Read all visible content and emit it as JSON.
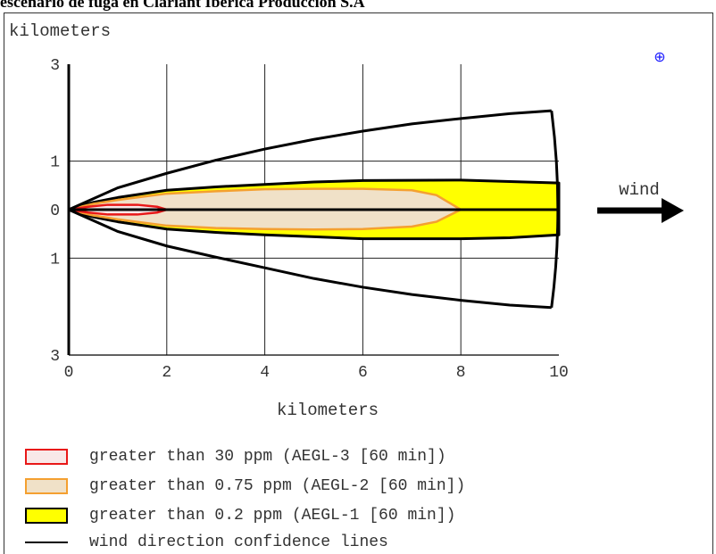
{
  "title": "escenario de fuga en Clariant Ibérica Producción S.A",
  "compass_symbol": "⊕",
  "wind_label": "wind",
  "chart_data": {
    "type": "area",
    "ylabel": "kilometers",
    "xlabel": "kilometers",
    "xlim": [
      0,
      10
    ],
    "ylim": [
      -3,
      3
    ],
    "x_ticks": [
      "0",
      "2",
      "4",
      "6",
      "8",
      "10"
    ],
    "y_ticks": [
      {
        "value": 3,
        "label": "3"
      },
      {
        "value": 1,
        "label": "1"
      },
      {
        "value": 0,
        "label": "0"
      },
      {
        "value": -1,
        "label": "1"
      },
      {
        "value": -3,
        "label": "3"
      }
    ],
    "grid": true,
    "series": [
      {
        "name": "greater than 0.2 ppm (AEGL-1 [60 min])",
        "fill": "#ffff00",
        "stroke": "#000000",
        "upper": [
          [
            0,
            0
          ],
          [
            0.5,
            0.15
          ],
          [
            1,
            0.25
          ],
          [
            2,
            0.4
          ],
          [
            3,
            0.47
          ],
          [
            4,
            0.52
          ],
          [
            5,
            0.57
          ],
          [
            6,
            0.6
          ],
          [
            8,
            0.61
          ],
          [
            9,
            0.58
          ],
          [
            10,
            0.55
          ]
        ],
        "lower": [
          [
            0,
            0
          ],
          [
            0.5,
            -0.15
          ],
          [
            1,
            -0.25
          ],
          [
            2,
            -0.4
          ],
          [
            3,
            -0.47
          ],
          [
            4,
            -0.52
          ],
          [
            5,
            -0.56
          ],
          [
            6,
            -0.6
          ],
          [
            8,
            -0.6
          ],
          [
            9,
            -0.58
          ],
          [
            10,
            -0.52
          ]
        ]
      },
      {
        "name": "greater than 0.75 ppm (AEGL-2 [60 min])",
        "fill": "#f0e1c8",
        "stroke": "#f4a030",
        "upper": [
          [
            0,
            0
          ],
          [
            0.5,
            0.12
          ],
          [
            1,
            0.2
          ],
          [
            2,
            0.33
          ],
          [
            3,
            0.38
          ],
          [
            4,
            0.42
          ],
          [
            5,
            0.43
          ],
          [
            6,
            0.43
          ],
          [
            7,
            0.4
          ],
          [
            7.5,
            0.3
          ],
          [
            8,
            0
          ]
        ],
        "lower": [
          [
            0,
            0
          ],
          [
            0.5,
            -0.12
          ],
          [
            1,
            -0.2
          ],
          [
            2,
            -0.33
          ],
          [
            3,
            -0.38
          ],
          [
            4,
            -0.4
          ],
          [
            5,
            -0.41
          ],
          [
            6,
            -0.4
          ],
          [
            7,
            -0.35
          ],
          [
            7.5,
            -0.25
          ],
          [
            8,
            0
          ]
        ]
      },
      {
        "name": "greater than 30 ppm (AEGL-3 [60 min])",
        "fill": "#f8e8e8",
        "stroke": "#e81818",
        "upper": [
          [
            0,
            0
          ],
          [
            0.4,
            0.06
          ],
          [
            0.8,
            0.1
          ],
          [
            1.4,
            0.1
          ],
          [
            1.8,
            0.06
          ],
          [
            2,
            0
          ]
        ],
        "lower": [
          [
            0,
            0
          ],
          [
            0.4,
            -0.06
          ],
          [
            0.8,
            -0.1
          ],
          [
            1.4,
            -0.1
          ],
          [
            1.8,
            -0.06
          ],
          [
            2,
            0
          ]
        ]
      }
    ],
    "confidence_lines": {
      "name": "wind direction confidence lines",
      "upper": [
        [
          0,
          0
        ],
        [
          1,
          0.45
        ],
        [
          2,
          0.75
        ],
        [
          3,
          1.02
        ],
        [
          4,
          1.25
        ],
        [
          5,
          1.45
        ],
        [
          6,
          1.62
        ],
        [
          7,
          1.77
        ],
        [
          8,
          1.88
        ],
        [
          9,
          1.98
        ],
        [
          9.85,
          2.04
        ]
      ],
      "lower": [
        [
          0,
          0
        ],
        [
          1,
          -0.45
        ],
        [
          2,
          -0.75
        ],
        [
          3,
          -0.98
        ],
        [
          4,
          -1.2
        ],
        [
          5,
          -1.42
        ],
        [
          6,
          -1.6
        ],
        [
          7,
          -1.75
        ],
        [
          8,
          -1.87
        ],
        [
          9,
          -1.97
        ],
        [
          9.85,
          -2.02
        ]
      ],
      "arc_x_at_center": 10.0
    },
    "legend": [
      {
        "label": "greater than 30 ppm (AEGL-3 [60 min])",
        "fill": "#f8e8e8",
        "stroke": "#e81818"
      },
      {
        "label": "greater than 0.75 ppm (AEGL-2 [60 min])",
        "fill": "#f0e1c8",
        "stroke": "#f4a030"
      },
      {
        "label": "greater than 0.2 ppm (AEGL-1 [60 min])",
        "fill": "#ffff00",
        "stroke": "#000000"
      },
      {
        "label": "wind direction confidence lines",
        "line": true
      }
    ]
  }
}
